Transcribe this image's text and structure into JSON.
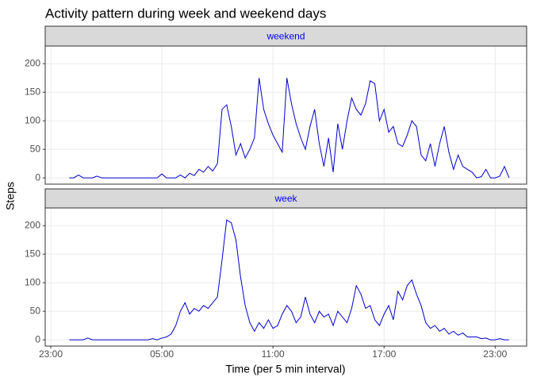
{
  "chart_data": {
    "type": "line",
    "title": "Activity pattern during week and weekend days",
    "x_label": "Time (per 5 min interval)",
    "y_label": "Steps",
    "x": [
      0,
      0.25,
      0.5,
      0.75,
      1,
      1.25,
      1.5,
      1.75,
      2,
      2.25,
      2.5,
      2.75,
      3,
      3.25,
      3.5,
      3.75,
      4,
      4.25,
      4.5,
      4.75,
      5,
      5.25,
      5.5,
      5.75,
      6,
      6.25,
      6.5,
      6.75,
      7,
      7.25,
      7.5,
      7.75,
      8,
      8.25,
      8.5,
      8.75,
      9,
      9.25,
      9.5,
      9.75,
      10,
      10.25,
      10.5,
      10.75,
      11,
      11.25,
      11.5,
      11.75,
      12,
      12.25,
      12.5,
      12.75,
      13,
      13.25,
      13.5,
      13.75,
      14,
      14.25,
      14.5,
      14.75,
      15,
      15.25,
      15.5,
      15.75,
      16,
      16.25,
      16.5,
      16.75,
      17,
      17.25,
      17.5,
      17.75,
      18,
      18.25,
      18.5,
      18.75,
      19,
      19.25,
      19.5,
      19.75,
      20,
      20.25,
      20.5,
      20.75,
      21,
      21.25,
      21.5,
      21.75,
      22,
      22.25,
      22.5,
      22.75,
      23,
      23.25,
      23.5,
      23.75
    ],
    "series": [
      {
        "name": "weekend",
        "color": "#0000cd",
        "values": [
          0,
          0,
          5,
          0,
          0,
          0,
          3,
          0,
          0,
          0,
          0,
          0,
          0,
          0,
          0,
          0,
          0,
          0,
          0,
          0,
          7,
          0,
          0,
          0,
          5,
          0,
          8,
          4,
          15,
          10,
          20,
          12,
          25,
          120,
          128,
          90,
          40,
          60,
          35,
          50,
          70,
          175,
          120,
          95,
          75,
          60,
          45,
          175,
          130,
          95,
          70,
          50,
          90,
          120,
          60,
          20,
          70,
          10,
          95,
          50,
          100,
          140,
          120,
          110,
          130,
          170,
          165,
          100,
          120,
          80,
          90,
          60,
          55,
          75,
          100,
          90,
          40,
          30,
          60,
          20,
          60,
          90,
          45,
          15,
          40,
          20,
          15,
          10,
          0,
          2,
          15,
          0,
          0,
          3,
          20,
          0
        ]
      },
      {
        "name": "week",
        "color": "#0000cd",
        "values": [
          0,
          0,
          0,
          0,
          3,
          0,
          0,
          0,
          0,
          0,
          0,
          0,
          0,
          0,
          0,
          0,
          0,
          0,
          2,
          0,
          3,
          5,
          10,
          25,
          50,
          65,
          45,
          55,
          50,
          60,
          55,
          65,
          75,
          140,
          210,
          205,
          175,
          110,
          60,
          30,
          15,
          30,
          20,
          35,
          20,
          25,
          45,
          60,
          50,
          30,
          40,
          75,
          45,
          30,
          50,
          40,
          45,
          25,
          50,
          40,
          30,
          55,
          95,
          80,
          55,
          60,
          35,
          25,
          45,
          60,
          35,
          85,
          70,
          95,
          105,
          80,
          60,
          30,
          20,
          25,
          15,
          20,
          10,
          15,
          8,
          12,
          5,
          5,
          5,
          2,
          3,
          0,
          0,
          2,
          0,
          0
        ]
      }
    ],
    "xlim": [
      -1.3,
      24.7
    ],
    "xticks": [
      {
        "value": -1,
        "label": "23:00"
      },
      {
        "value": 5,
        "label": "05:00"
      },
      {
        "value": 11,
        "label": "11:00"
      },
      {
        "value": 17,
        "label": "17:00"
      },
      {
        "value": 23,
        "label": "23:00"
      }
    ],
    "ylim": [
      -11,
      231
    ],
    "yticks": [
      0,
      50,
      100,
      150,
      200
    ],
    "grid": true
  }
}
